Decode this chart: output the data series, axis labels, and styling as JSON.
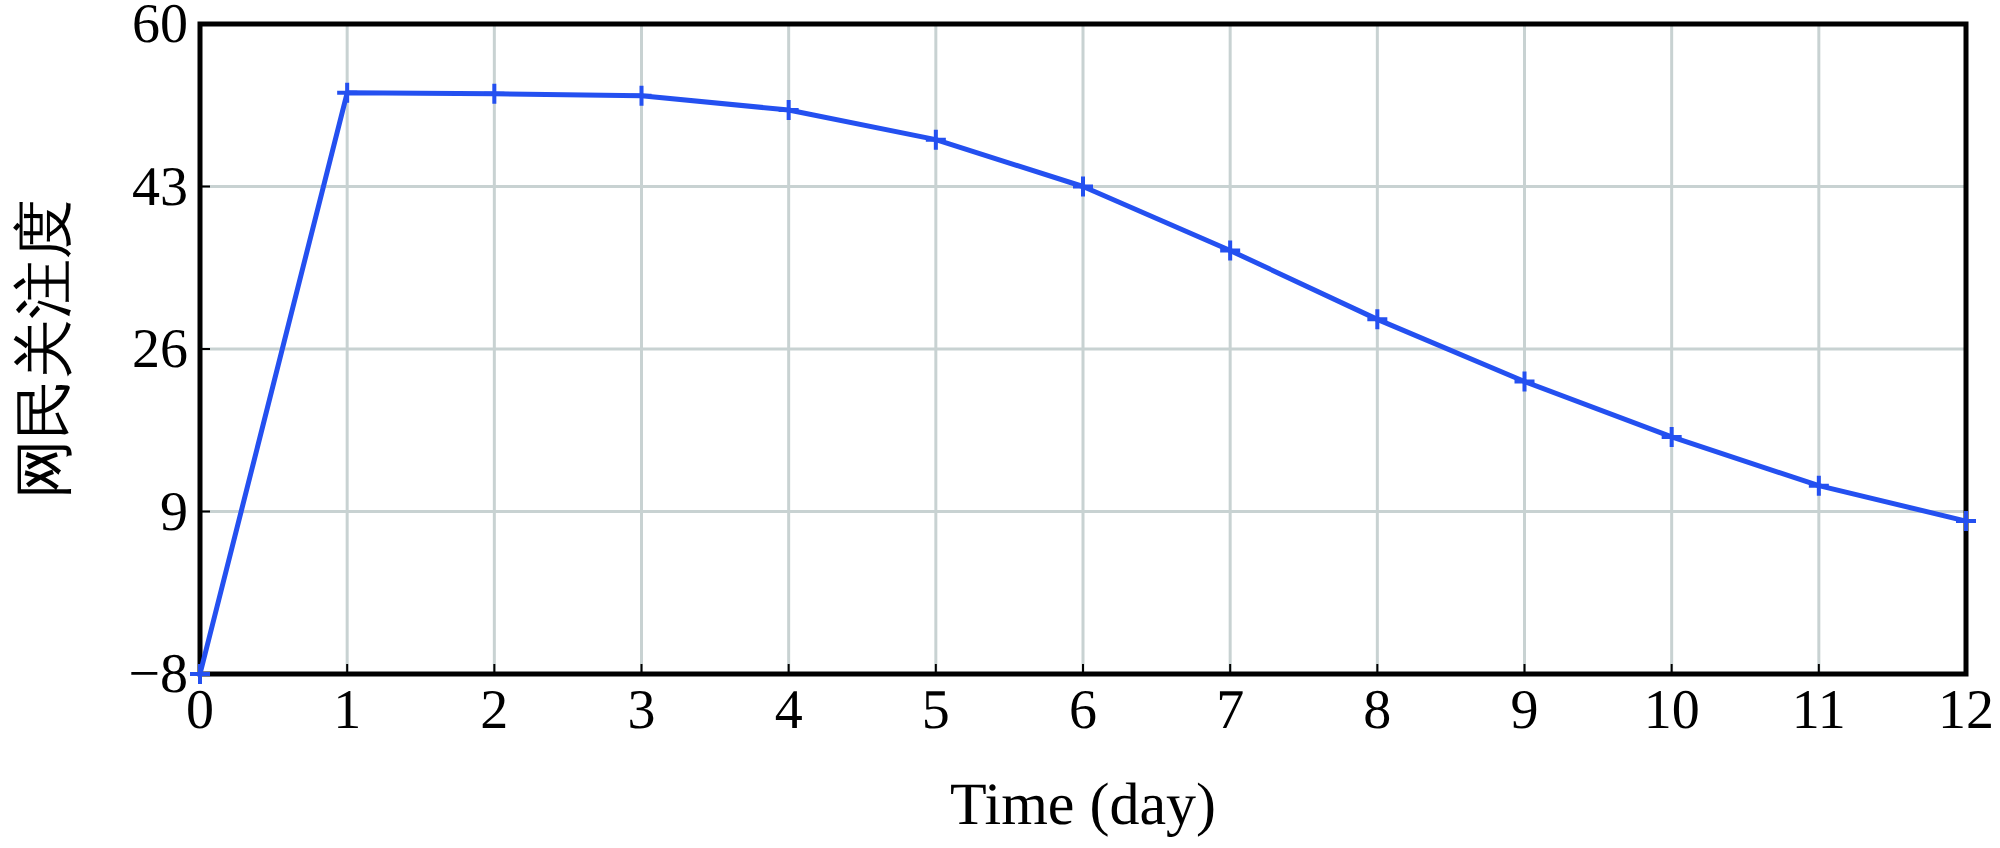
{
  "chart_data": {
    "type": "line",
    "xlabel": "Time (day)",
    "ylabel": "网民关注度",
    "x": [
      0,
      1,
      2,
      3,
      4,
      5,
      6,
      7,
      8,
      9,
      10,
      11,
      12
    ],
    "series": [
      {
        "color": "#2450f0",
        "values": [
          -8,
          52.8,
          52.7,
          52.5,
          51,
          47.9,
          43,
          36.3,
          29.1,
          22.6,
          16.8,
          11.7,
          8
        ]
      }
    ],
    "xlim": [
      0,
      12
    ],
    "xticks": [
      0,
      1,
      2,
      3,
      4,
      5,
      6,
      7,
      8,
      9,
      10,
      11,
      12
    ],
    "ylim": [
      -8,
      60
    ],
    "yticks": [
      {
        "value": -8,
        "label": "−8"
      },
      9,
      26,
      43,
      60
    ],
    "grid": true,
    "marker": "cross",
    "line_style": "solid"
  }
}
